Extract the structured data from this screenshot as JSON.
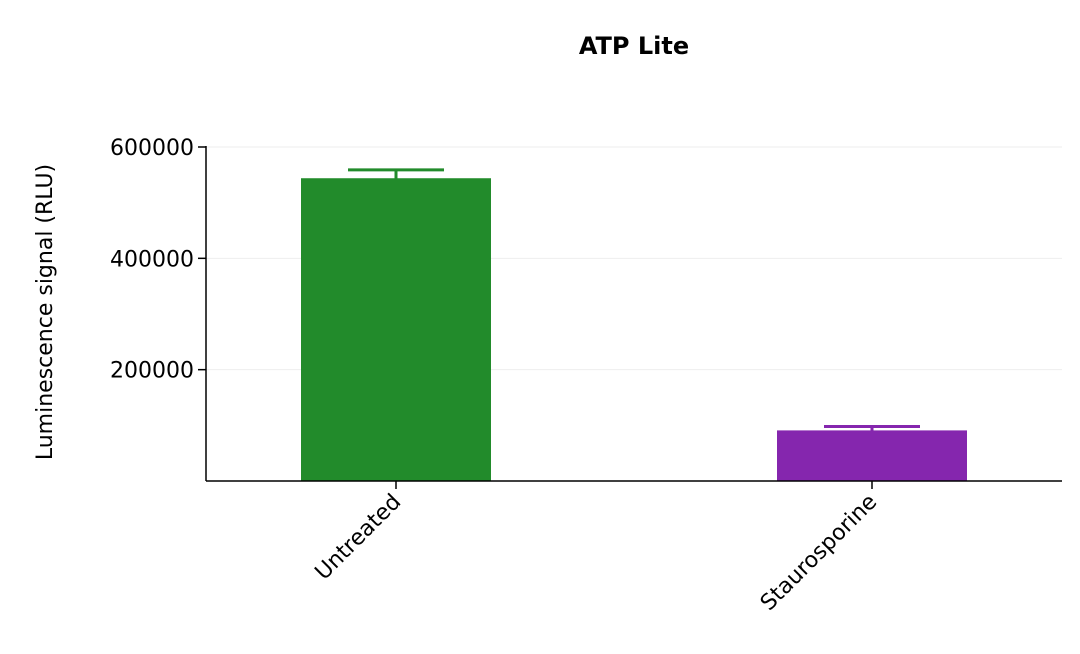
{
  "chart_data": {
    "type": "bar",
    "title": "ATP Lite",
    "xlabel": "",
    "ylabel": "Luminescence signal (RLU)",
    "categories": [
      "Untreated",
      "Staurosporine"
    ],
    "values": [
      543000,
      90000
    ],
    "errors": [
      16000,
      8000
    ],
    "colors": [
      "#228B2B",
      "#8526AE"
    ],
    "ylim": [
      0,
      600000
    ],
    "yticks": [
      200000,
      400000,
      600000
    ],
    "ytick_labels": [
      "200000",
      "400000",
      "600000"
    ],
    "grid": true
  }
}
